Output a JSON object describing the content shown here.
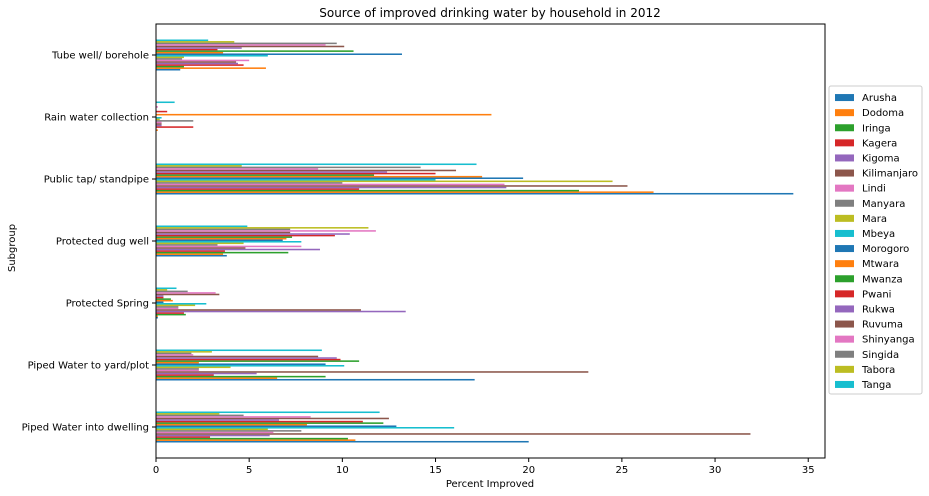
{
  "chart_data": {
    "type": "bar",
    "orientation": "horizontal",
    "title": "Source of improved drinking water by household in 2012",
    "xlabel": "Percent Improved",
    "ylabel": "Subgroup",
    "xlim": [
      0,
      35.9
    ],
    "xticks": [
      0,
      5,
      10,
      15,
      20,
      25,
      30,
      35
    ],
    "grid": false,
    "legend_position": "right",
    "categories": [
      "Piped Water into dwelling",
      "Piped Water to yard/plot",
      "Protected Spring",
      "Protected dug well",
      "Public tap/ standpipe",
      "Rain water collection",
      "Tube well/ borehole"
    ],
    "series": [
      {
        "name": "Arusha",
        "color": "#1f77b4",
        "values": [
          20.0,
          17.1,
          0.1,
          3.8,
          34.2,
          0.0,
          1.3
        ]
      },
      {
        "name": "Dodoma",
        "color": "#ff7f0e",
        "values": [
          10.7,
          6.5,
          0.1,
          3.6,
          26.7,
          0.1,
          5.9
        ]
      },
      {
        "name": "Iringa",
        "color": "#2ca02c",
        "values": [
          10.3,
          9.1,
          1.6,
          7.1,
          22.7,
          0.0,
          1.5
        ]
      },
      {
        "name": "Kagera",
        "color": "#d62728",
        "values": [
          2.9,
          3.1,
          1.5,
          3.7,
          10.9,
          2.0,
          4.7
        ]
      },
      {
        "name": "Kigoma",
        "color": "#9467bd",
        "values": [
          6.1,
          5.4,
          13.4,
          8.8,
          18.8,
          0.3,
          4.4
        ]
      },
      {
        "name": "Kilimanjaro",
        "color": "#8c564b",
        "values": [
          31.9,
          23.2,
          11.0,
          4.8,
          25.3,
          0.3,
          4.3
        ]
      },
      {
        "name": "Lindi",
        "color": "#e377c2",
        "values": [
          6.3,
          2.3,
          1.2,
          7.8,
          18.7,
          0.3,
          5.0
        ]
      },
      {
        "name": "Manyara",
        "color": "#7f7f7f",
        "values": [
          7.8,
          2.3,
          1.2,
          3.3,
          10.0,
          2.0,
          1.4
        ]
      },
      {
        "name": "Mara",
        "color": "#bcbd22",
        "values": [
          6.0,
          4.0,
          2.1,
          4.7,
          24.5,
          0.2,
          1.5
        ]
      },
      {
        "name": "Mbeya",
        "color": "#17becf",
        "values": [
          16.0,
          10.1,
          2.7,
          7.8,
          15.0,
          0.3,
          6.0
        ]
      },
      {
        "name": "Morogoro",
        "color": "#1f77b4",
        "values": [
          12.9,
          9.1,
          0.4,
          6.8,
          19.7,
          0.0,
          13.2
        ]
      },
      {
        "name": "Mtwara",
        "color": "#ff7f0e",
        "values": [
          8.1,
          2.3,
          0.9,
          7.0,
          17.5,
          18.0,
          3.6
        ]
      },
      {
        "name": "Mwanza",
        "color": "#2ca02c",
        "values": [
          12.2,
          10.9,
          0.8,
          7.3,
          11.7,
          0.0,
          10.6
        ]
      },
      {
        "name": "Pwani",
        "color": "#d62728",
        "values": [
          11.1,
          9.9,
          0.4,
          9.6,
          15.0,
          0.6,
          3.3
        ]
      },
      {
        "name": "Rukwa",
        "color": "#9467bd",
        "values": [
          6.6,
          9.7,
          0.4,
          10.4,
          12.4,
          0.0,
          4.6
        ]
      },
      {
        "name": "Ruvuma",
        "color": "#8c564b",
        "values": [
          12.5,
          8.7,
          3.4,
          7.2,
          16.1,
          0.0,
          10.1
        ]
      },
      {
        "name": "Shinyanga",
        "color": "#e377c2",
        "values": [
          8.3,
          2.0,
          3.2,
          11.8,
          8.7,
          0.1,
          9.1
        ]
      },
      {
        "name": "Singida",
        "color": "#7f7f7f",
        "values": [
          4.7,
          1.9,
          1.7,
          7.2,
          14.2,
          0.0,
          9.7
        ]
      },
      {
        "name": "Tabora",
        "color": "#bcbd22",
        "values": [
          3.4,
          3.0,
          0.6,
          11.4,
          4.6,
          0.0,
          4.2
        ]
      },
      {
        "name": "Tanga",
        "color": "#17becf",
        "values": [
          12.0,
          8.9,
          1.1,
          4.9,
          17.2,
          1.0,
          2.8
        ]
      }
    ]
  }
}
